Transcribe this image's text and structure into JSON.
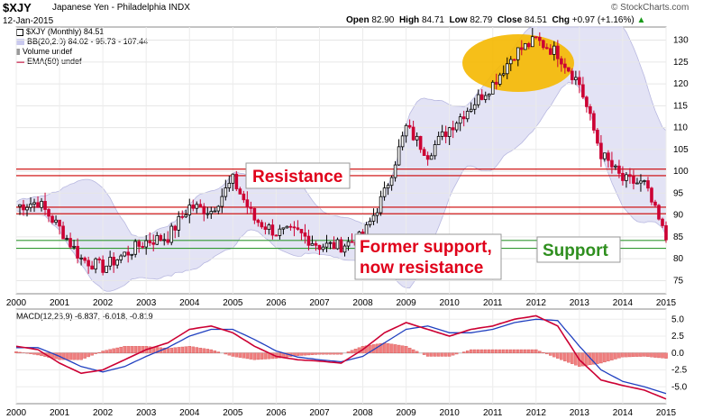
{
  "header": {
    "symbol": "$XJY",
    "name": "Japanese Yen - Philadelphia",
    "exchange": "INDX",
    "date": "12-Jan-2015",
    "open_label": "Open",
    "open": "82.90",
    "high_label": "High",
    "high": "84.71",
    "low_label": "Low",
    "low": "82.79",
    "close_label": "Close",
    "close": "84.51",
    "chg_label": "Chg",
    "chg": "+0.97 (+1.16%)",
    "chg_arrow": "▲",
    "brand": "© StockCharts.com"
  },
  "legend": {
    "main": "$XJY (Monthly) 84.51",
    "bb": "BB(20,2.0) 84.02 - 95.73 - 107.44",
    "volume": "Volume undef",
    "ema": "EMA(50) undef"
  },
  "annotations": {
    "resistance": "Resistance",
    "former_support_1": "Former support,",
    "former_support_2": "now resistance",
    "support": "Support"
  },
  "colors": {
    "up": "#000000",
    "down": "#cc0033",
    "bb_fill": "#e3e3f5",
    "resistance_line": "#cc0000",
    "support_line": "#339933",
    "highlight": "#f5b800",
    "macd": "#cc0033",
    "signal": "#2040c0",
    "hist": "#f08080"
  },
  "chart_data": [
    {
      "type": "candlestick",
      "title": "$XJY Japanese Yen - Philadelphia INDX (Monthly)",
      "x_ticks": [
        "2000",
        "2001",
        "2002",
        "2003",
        "2004",
        "2005",
        "2006",
        "2007",
        "2008",
        "2009",
        "2010",
        "2011",
        "2012",
        "2013",
        "2014",
        "2015"
      ],
      "y_ticks": [
        75,
        80,
        85,
        90,
        95,
        100,
        105,
        110,
        115,
        120,
        125,
        130
      ],
      "ylim": [
        72,
        133
      ],
      "resistance_levels": [
        100.5,
        99.0,
        91.8,
        90.3
      ],
      "support_levels": [
        84.2,
        82.4
      ],
      "series": [
        {
          "name": "$XJY",
          "x": [
            2000.0,
            2000.5,
            2001.0,
            2001.5,
            2002.0,
            2002.5,
            2003.0,
            2003.5,
            2004.0,
            2004.5,
            2005.0,
            2005.5,
            2006.0,
            2006.5,
            2007.0,
            2007.5,
            2008.0,
            2008.5,
            2009.0,
            2009.5,
            2010.0,
            2010.5,
            2011.0,
            2011.5,
            2012.0,
            2012.5,
            2013.0,
            2013.5,
            2014.0,
            2014.5,
            2015.0
          ],
          "values": [
            92,
            93,
            87,
            80,
            78,
            81,
            84,
            85,
            92,
            91,
            98,
            89,
            86,
            86,
            83,
            83,
            85,
            95,
            110,
            104,
            110,
            115,
            120,
            127,
            130,
            127,
            120,
            104,
            98,
            97,
            84.5
          ]
        }
      ]
    },
    {
      "type": "line",
      "title": "MACD(12,26,9) -6.837, -6.018, -0.819",
      "y_ticks": [
        -5.0,
        -2.5,
        0.0,
        2.5,
        5.0
      ],
      "ylim": [
        -7.5,
        6.5
      ],
      "series": [
        {
          "name": "MACD",
          "x": [
            2000.0,
            2000.5,
            2001.0,
            2001.5,
            2002.0,
            2002.5,
            2003.0,
            2003.5,
            2004.0,
            2004.5,
            2005.0,
            2005.5,
            2006.0,
            2006.5,
            2007.0,
            2007.5,
            2008.0,
            2008.5,
            2009.0,
            2009.5,
            2010.0,
            2010.5,
            2011.0,
            2011.5,
            2012.0,
            2012.5,
            2013.0,
            2013.5,
            2014.0,
            2014.5,
            2015.0
          ],
          "values": [
            1.0,
            0.5,
            -1.5,
            -3.0,
            -2.5,
            -1.0,
            0.5,
            1.5,
            3.5,
            4.0,
            3.0,
            1.0,
            -0.5,
            -1.0,
            -1.2,
            -1.5,
            0.5,
            3.0,
            4.5,
            3.5,
            2.5,
            3.5,
            4.0,
            5.0,
            5.5,
            4.0,
            -1.0,
            -4.0,
            -4.8,
            -5.5,
            -6.8
          ]
        },
        {
          "name": "Signal",
          "x": [
            2000.0,
            2000.5,
            2001.0,
            2001.5,
            2002.0,
            2002.5,
            2003.0,
            2003.5,
            2004.0,
            2004.5,
            2005.0,
            2005.5,
            2006.0,
            2006.5,
            2007.0,
            2007.5,
            2008.0,
            2008.5,
            2009.0,
            2009.5,
            2010.0,
            2010.5,
            2011.0,
            2011.5,
            2012.0,
            2012.5,
            2013.0,
            2013.5,
            2014.0,
            2014.5,
            2015.0
          ],
          "values": [
            0.8,
            0.8,
            -0.5,
            -2.0,
            -2.8,
            -2.0,
            -0.5,
            0.8,
            2.5,
            3.5,
            3.5,
            2.0,
            0.3,
            -0.6,
            -1.0,
            -1.3,
            -0.5,
            1.5,
            3.5,
            4.0,
            3.0,
            3.0,
            3.5,
            4.5,
            5.0,
            4.8,
            1.0,
            -2.5,
            -4.2,
            -5.0,
            -6.0
          ]
        },
        {
          "name": "Histogram",
          "x": [
            2000.0,
            2000.5,
            2001.0,
            2001.5,
            2002.0,
            2002.5,
            2003.0,
            2003.5,
            2004.0,
            2004.5,
            2005.0,
            2005.5,
            2006.0,
            2006.5,
            2007.0,
            2007.5,
            2008.0,
            2008.5,
            2009.0,
            2009.5,
            2010.0,
            2010.5,
            2011.0,
            2011.5,
            2012.0,
            2012.5,
            2013.0,
            2013.5,
            2014.0,
            2014.5,
            2015.0
          ],
          "values": [
            0.2,
            -0.3,
            -1.0,
            -1.0,
            0.3,
            1.0,
            1.0,
            0.7,
            1.0,
            0.5,
            -0.5,
            -1.0,
            -0.8,
            -0.4,
            -0.2,
            -0.2,
            1.0,
            1.5,
            1.0,
            -0.5,
            -0.5,
            0.5,
            0.5,
            0.5,
            0.5,
            -0.8,
            -2.0,
            -1.5,
            -0.6,
            -0.5,
            -0.8
          ]
        }
      ]
    }
  ]
}
